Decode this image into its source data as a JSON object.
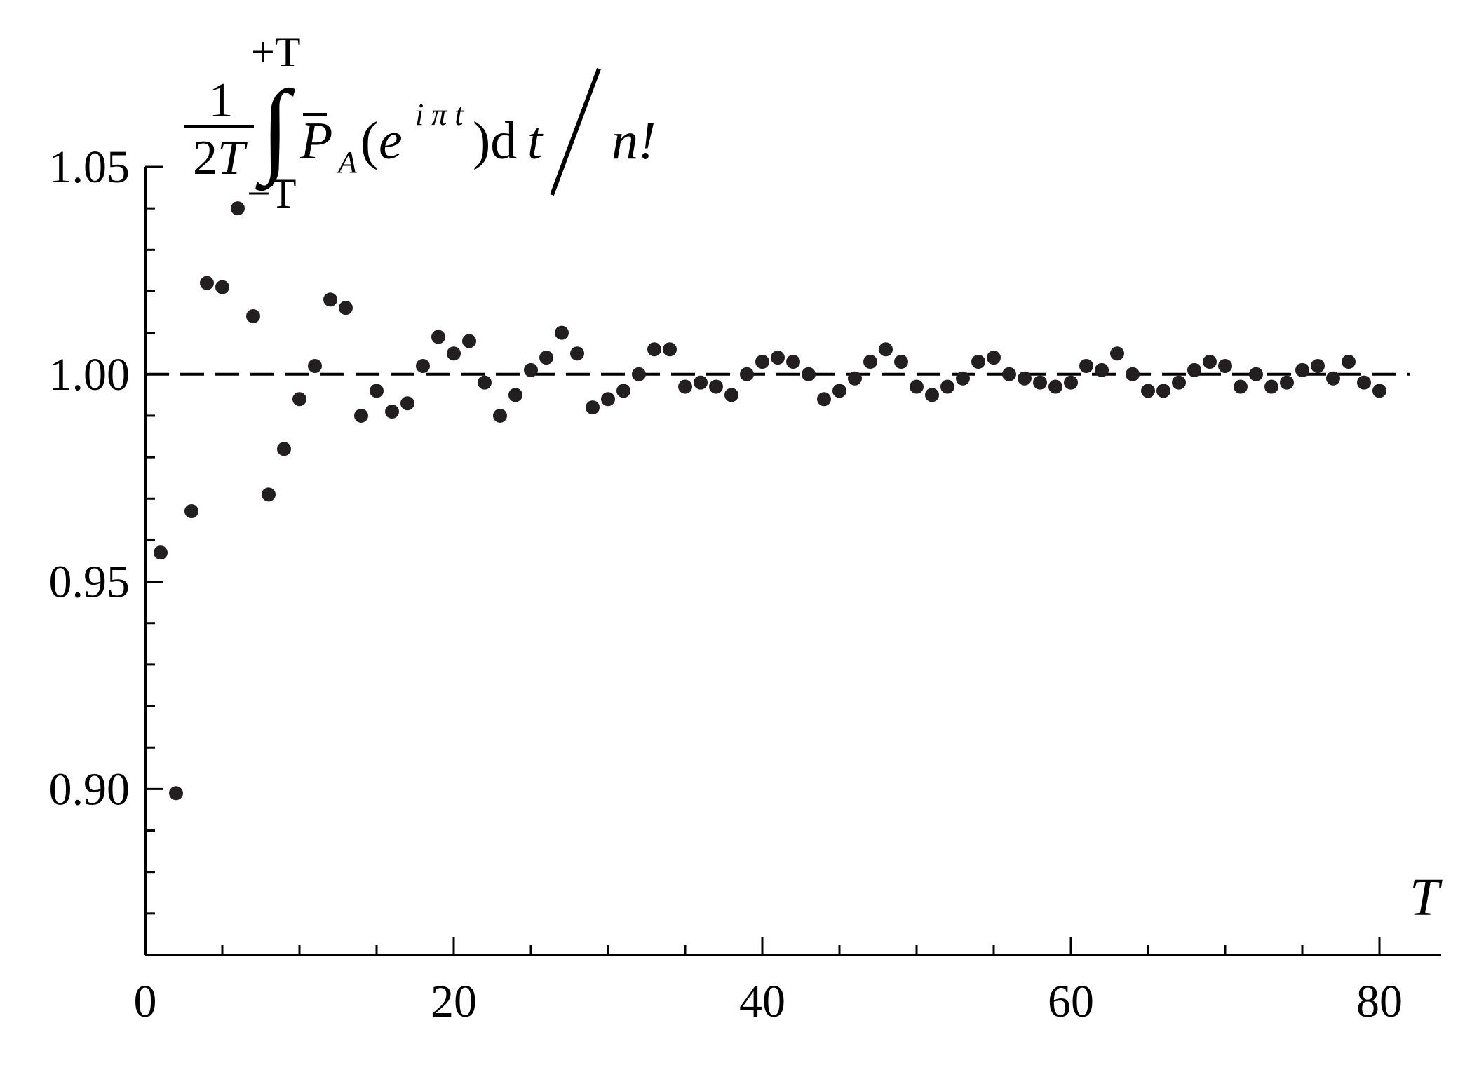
{
  "chart_data": {
    "type": "scatter",
    "title": "",
    "ylabel": "",
    "xlabel": "T",
    "ylabel_formula": {
      "frac_num": "1",
      "frac_den": "2T",
      "upper_limit": "+T",
      "lower_limit": "−T",
      "integral_sign": "∫",
      "func_letter": "P",
      "func_subscript": "A",
      "open_paren": "(",
      "base": "e",
      "exponent": "i π t",
      "close_paren_dt": ")d",
      "dt_var": "t",
      "divisor": "n!"
    },
    "xlim": [
      0,
      84
    ],
    "ylim": [
      0.86,
      1.05
    ],
    "x_ticks": [
      0,
      20,
      40,
      60,
      80
    ],
    "x_tick_labels": [
      "0",
      "20",
      "40",
      "60",
      "80"
    ],
    "x_minor_step": 5,
    "y_ticks": [
      0.9,
      0.95,
      1.0,
      1.05
    ],
    "y_tick_labels": [
      "0.90",
      "0.95",
      "1.00",
      "1.05"
    ],
    "y_minor_step": 0.01,
    "reference_line": {
      "y": 1.0,
      "style": "dashed"
    },
    "grid": false,
    "marker_color": "#231f20",
    "series": [
      {
        "x": [
          1,
          2,
          3,
          4,
          5,
          6,
          7,
          8,
          9,
          10,
          11,
          12,
          13,
          14,
          15,
          16,
          17,
          18,
          19,
          20,
          21,
          22,
          23,
          24,
          25,
          26,
          27,
          28,
          29,
          30,
          31,
          32,
          33,
          34,
          35,
          36,
          37,
          38,
          39,
          40,
          41,
          42,
          43,
          44,
          45,
          46,
          47,
          48,
          49,
          50,
          51,
          52,
          53,
          54,
          55,
          56,
          57,
          58,
          59,
          60,
          61,
          62,
          63,
          64,
          65,
          66,
          67,
          68,
          69,
          70,
          71,
          72,
          73,
          74,
          75,
          76,
          77,
          78,
          79,
          80
        ],
        "y": [
          0.957,
          0.899,
          0.967,
          1.022,
          1.021,
          1.04,
          1.014,
          0.971,
          0.982,
          0.994,
          1.002,
          1.018,
          1.016,
          0.99,
          0.996,
          0.991,
          0.993,
          1.002,
          1.009,
          1.005,
          1.008,
          0.998,
          0.99,
          0.995,
          1.001,
          1.004,
          1.01,
          1.005,
          0.992,
          0.994,
          0.996,
          1.0,
          1.006,
          1.006,
          0.997,
          0.998,
          0.997,
          0.995,
          1.0,
          1.003,
          1.004,
          1.003,
          1.0,
          0.994,
          0.996,
          0.999,
          1.003,
          1.006,
          1.003,
          0.997,
          0.995,
          0.997,
          0.999,
          1.003,
          1.004,
          1.0,
          0.999,
          0.998,
          0.997,
          0.998,
          1.002,
          1.001,
          1.005,
          1.0,
          0.996,
          0.996,
          0.998,
          1.001,
          1.003,
          1.002,
          0.997,
          1.0,
          0.997,
          0.998,
          1.001,
          1.002,
          0.999,
          1.003,
          0.998,
          0.996
        ]
      }
    ]
  }
}
